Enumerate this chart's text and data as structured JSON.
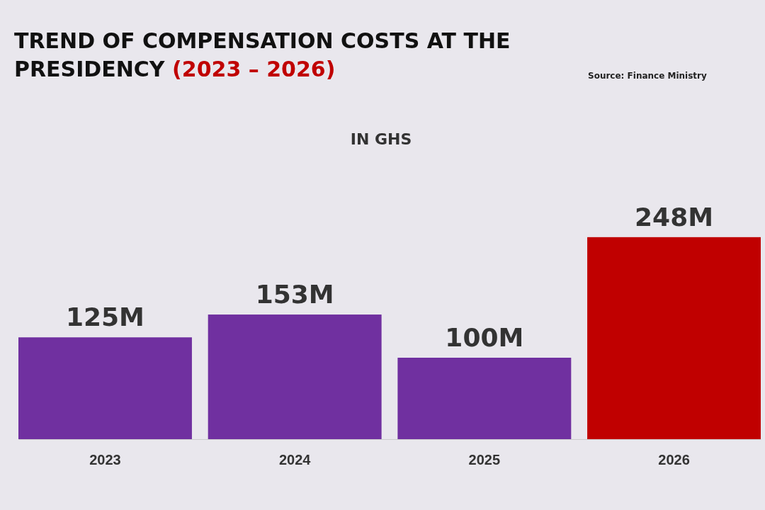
{
  "chart_data": {
    "type": "bar",
    "title": "TREND OF COMPENSATION COSTS AT THE PRESIDENCY (2023 – 2026)",
    "subtitle": "IN GHS",
    "categories": [
      "2023",
      "2024",
      "2025",
      "2026"
    ],
    "values": [
      125,
      153,
      100,
      248
    ],
    "colors": [
      "#7030a0",
      "#7030a0",
      "#7030a0",
      "#c00000"
    ],
    "value_labels": [
      "125M",
      "153M",
      "100M",
      "248M"
    ],
    "annotations": [
      "Source: Finance Ministry"
    ]
  }
}
